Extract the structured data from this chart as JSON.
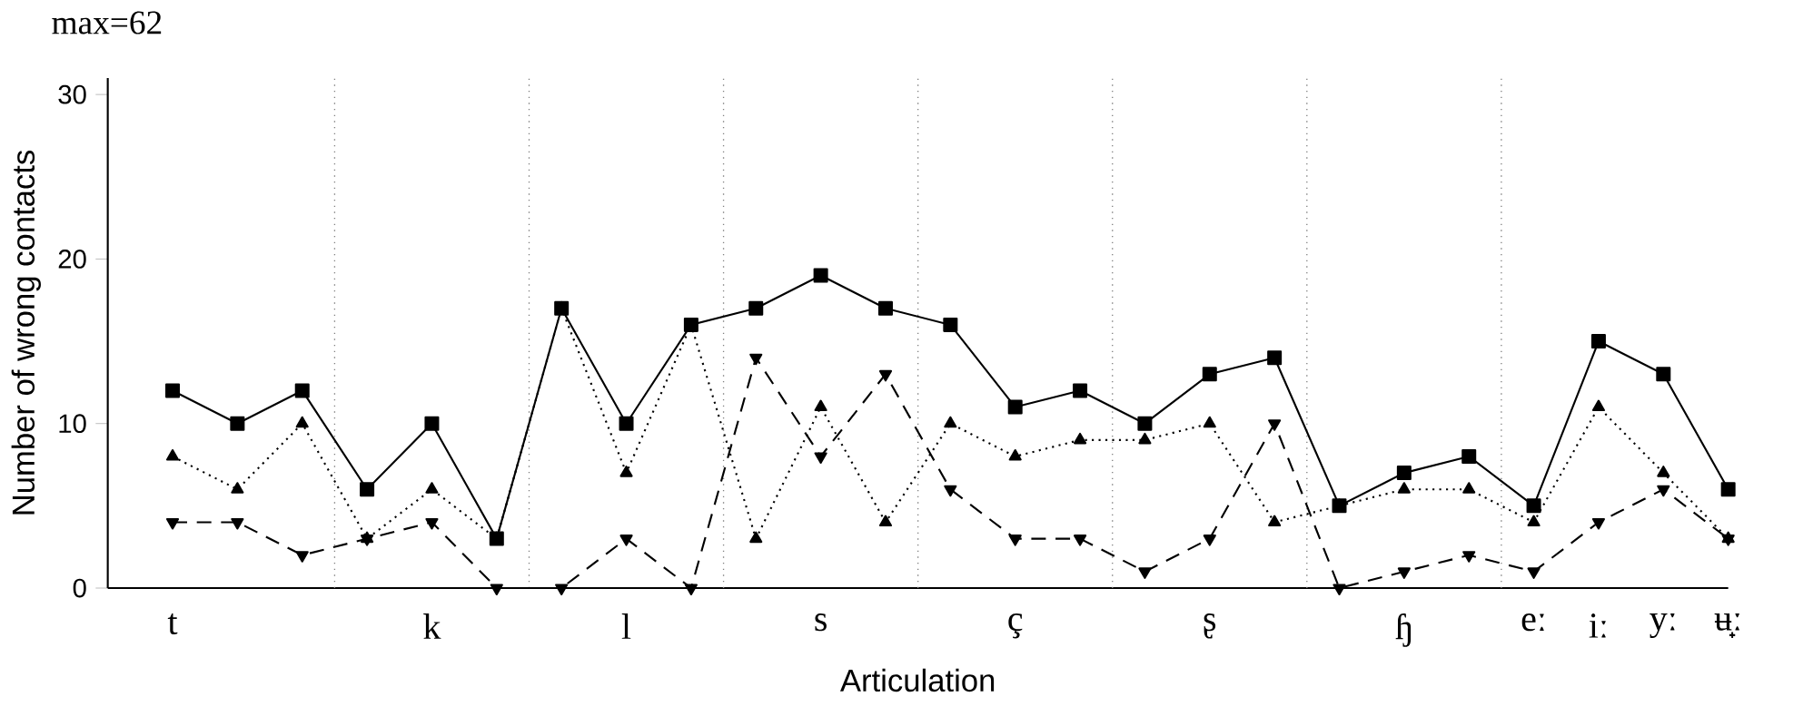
{
  "chart_data": {
    "type": "line",
    "title": "max=62",
    "xlabel": "Articulation",
    "ylabel": "Number of wrong contacts",
    "categories": [
      "t",
      null,
      null,
      null,
      "k",
      null,
      null,
      "l",
      null,
      null,
      "s",
      null,
      null,
      "ç",
      null,
      null,
      "ʂ",
      null,
      null,
      "ɧ",
      null,
      "eː",
      "iː",
      "yː",
      "ʉ̟ː"
    ],
    "series": [
      {
        "color": "#000000",
        "marker": "square",
        "line_style": "solid",
        "values": [
          12,
          10,
          12,
          6,
          10,
          3,
          17,
          10,
          16,
          17,
          19,
          17,
          16,
          11,
          12,
          10,
          13,
          14,
          5,
          7,
          8,
          5,
          15,
          13,
          6
        ]
      },
      {
        "color": "#000000",
        "marker": "triangle",
        "line_style": "dotted",
        "values": [
          8,
          6,
          10,
          3,
          6,
          3,
          17,
          7,
          16,
          3,
          11,
          4,
          10,
          8,
          9,
          9,
          10,
          4,
          5,
          6,
          6,
          4,
          11,
          7,
          3
        ]
      },
      {
        "color": "#000000",
        "marker": "triangle down",
        "line_style": "dashed",
        "values": [
          4,
          4,
          2,
          3,
          4,
          0,
          0,
          3,
          0,
          14,
          8,
          13,
          6,
          3,
          3,
          1,
          3,
          10,
          0,
          1,
          2,
          1,
          4,
          6,
          3
        ]
      }
    ],
    "ylim": [
      0,
      31
    ],
    "yticks": [
      0,
      10,
      20,
      30
    ],
    "grid": false
  }
}
